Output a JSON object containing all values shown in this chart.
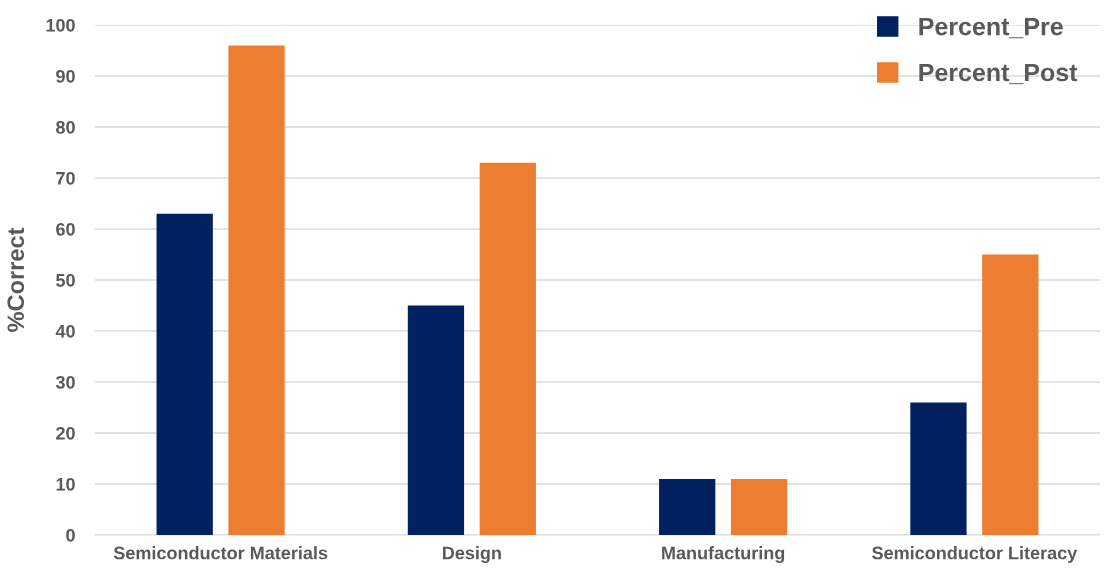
{
  "chart_data": {
    "type": "bar",
    "ylabel": "%Correct",
    "categories": [
      "Semiconductor Materials",
      "Design",
      "Manufacturing",
      "Semiconductor Literacy"
    ],
    "series": [
      {
        "name": "Percent_Pre",
        "color": "#002060",
        "values": [
          63,
          45,
          11,
          26
        ]
      },
      {
        "name": "Percent_Post",
        "color": "#ed7d31",
        "values": [
          96,
          73,
          11,
          55
        ]
      }
    ],
    "ylim": [
      0,
      100
    ],
    "yticks": [
      0,
      10,
      20,
      30,
      40,
      50,
      60,
      70,
      80,
      90,
      100
    ],
    "grid": "y",
    "legend": "top right"
  }
}
